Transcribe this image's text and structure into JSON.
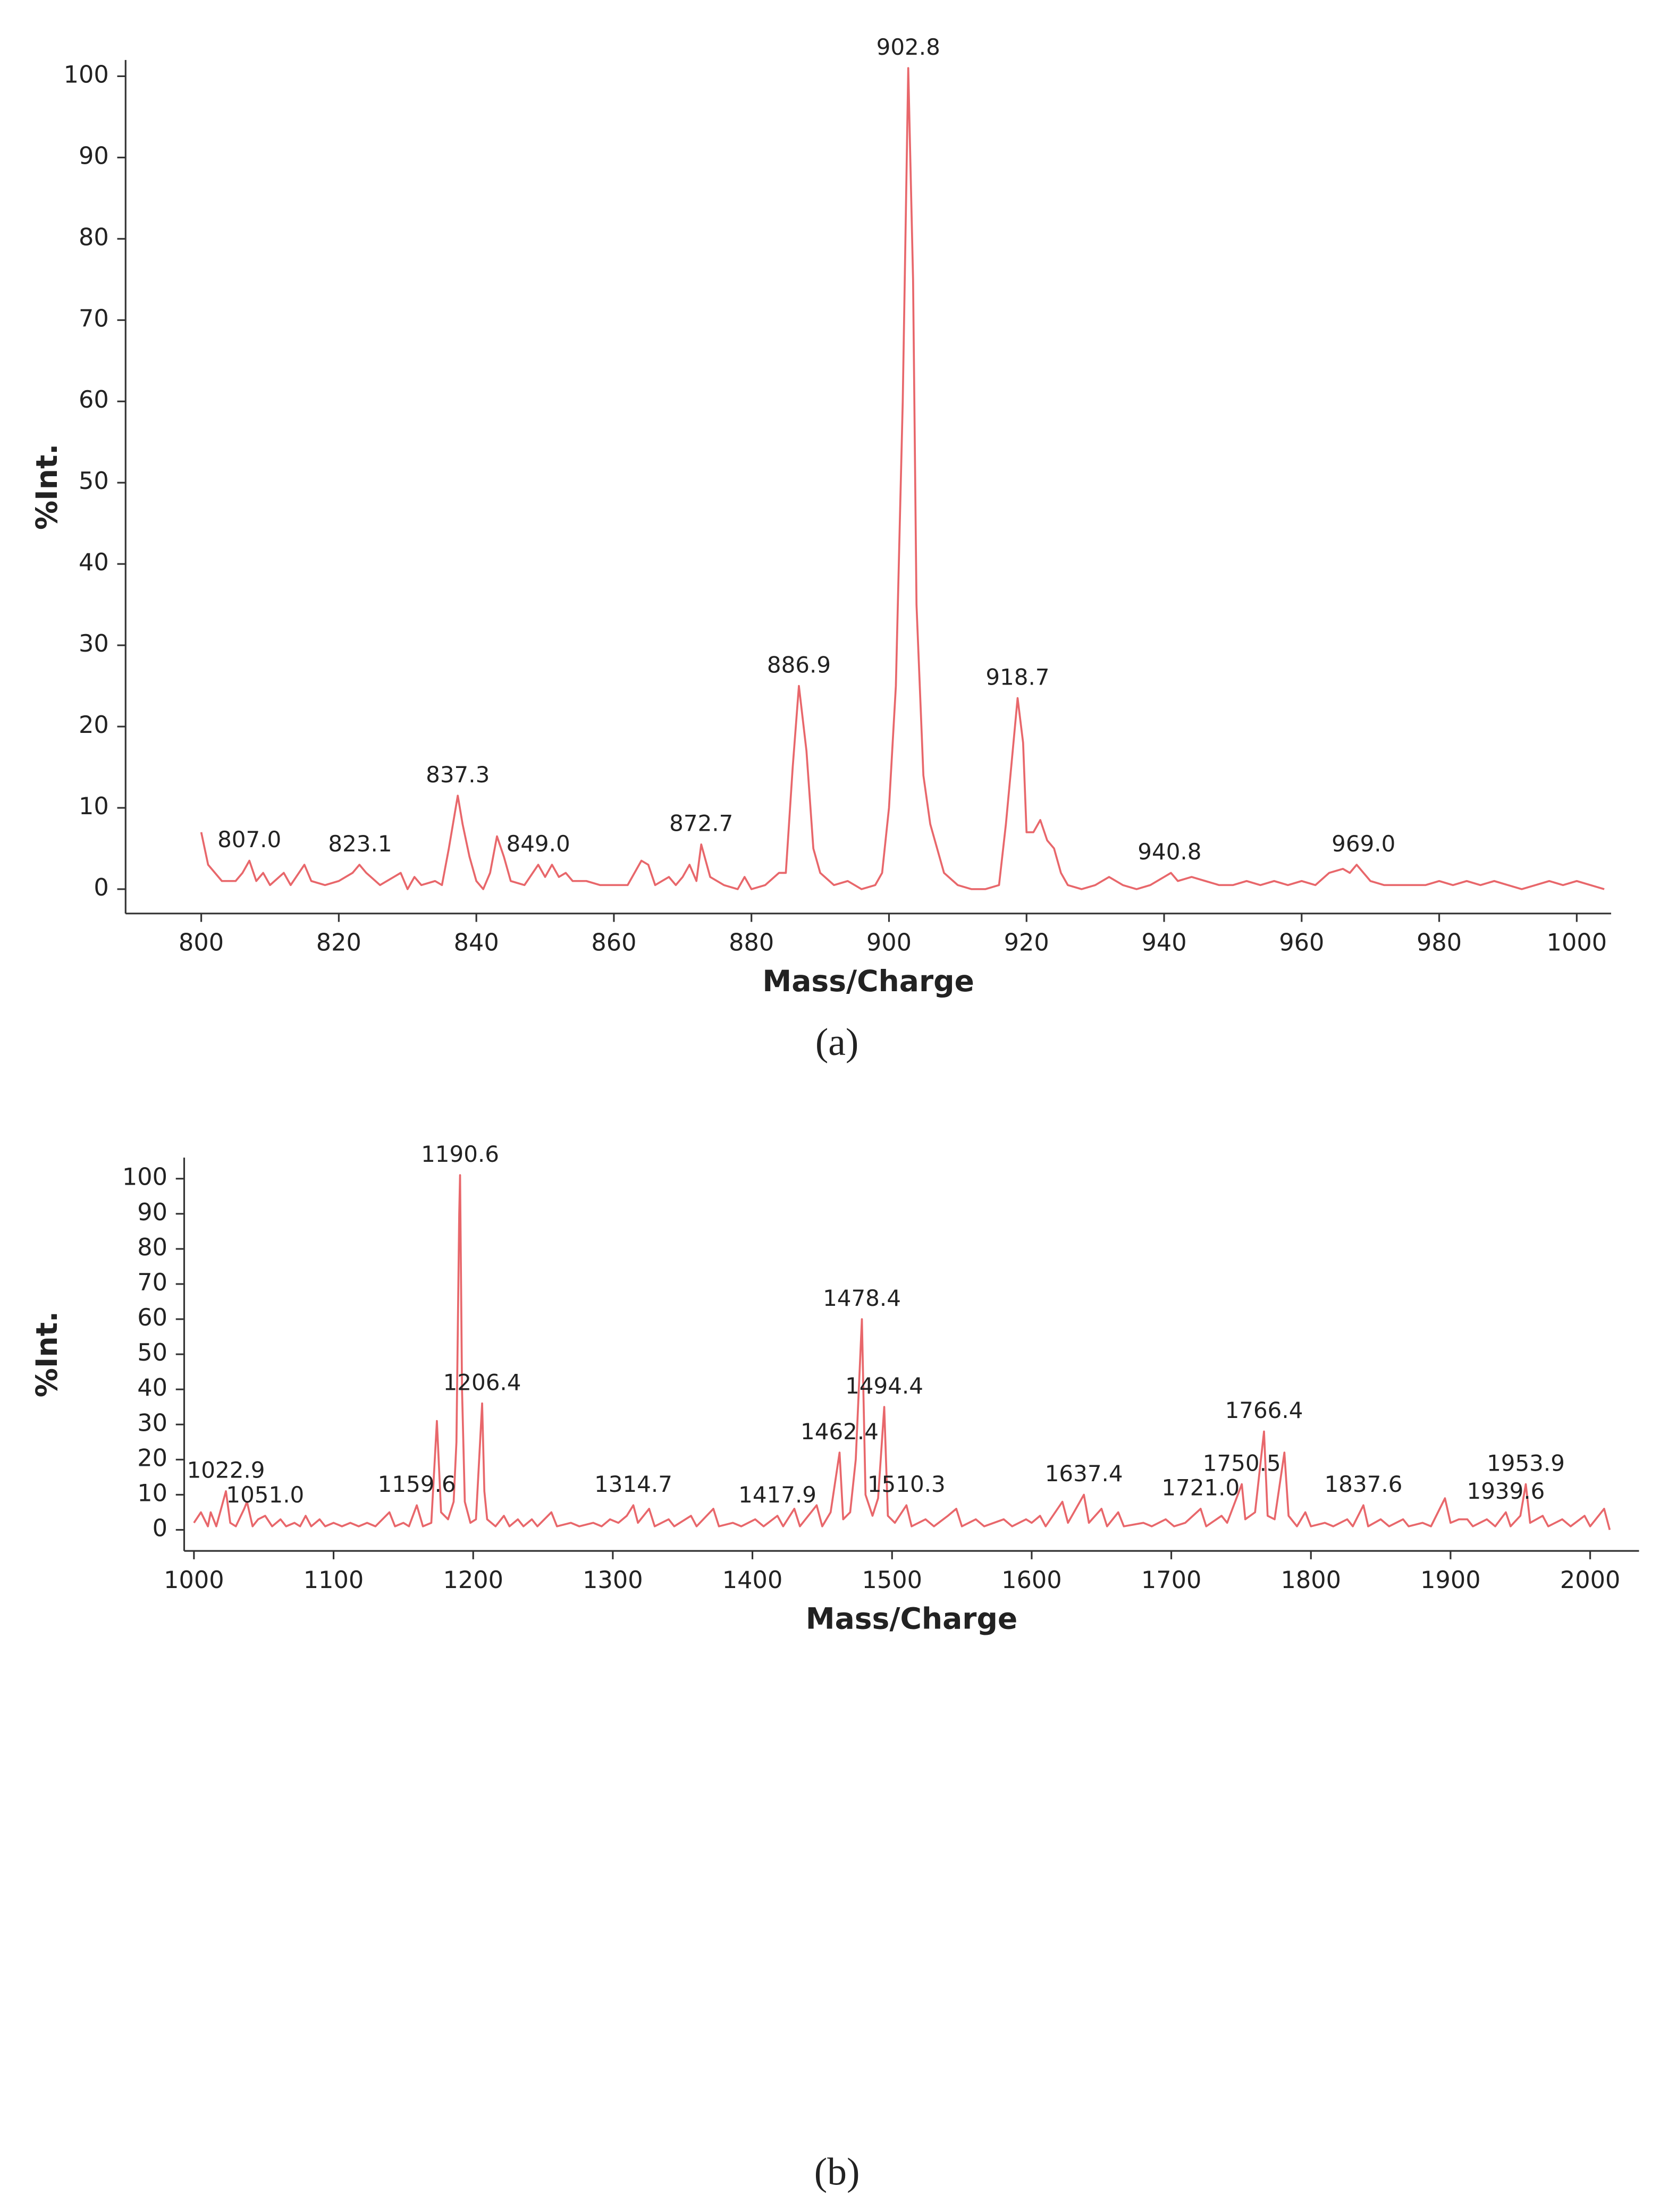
{
  "chart_data": [
    {
      "type": "line",
      "caption": "(a)",
      "xlabel": "Mass/Charge",
      "ylabel": "%Int.",
      "color": "#e8676b",
      "xlim": [
        789,
        1005
      ],
      "ylim": [
        -3,
        102
      ],
      "xticks": [
        800,
        820,
        840,
        860,
        880,
        900,
        920,
        940,
        960,
        980,
        1000
      ],
      "yticks": [
        0,
        10,
        20,
        30,
        40,
        50,
        60,
        70,
        80,
        90,
        100
      ],
      "x": [
        800,
        801,
        803,
        805,
        806,
        807,
        808,
        809,
        810,
        812,
        813,
        815,
        816,
        818,
        820,
        822,
        823,
        824,
        826,
        828,
        829,
        830,
        831,
        832,
        834,
        835,
        836,
        837.3,
        838,
        839,
        840,
        841,
        842,
        843,
        844,
        845,
        847,
        849,
        850,
        851,
        852,
        853,
        854,
        856,
        858,
        860,
        862,
        864,
        865,
        866,
        868,
        869,
        870,
        871,
        872,
        872.7,
        874,
        876,
        878,
        879,
        880,
        882,
        884,
        885,
        886,
        886.9,
        888,
        889,
        890,
        892,
        894,
        896,
        898,
        899,
        900,
        901,
        902,
        902.8,
        903.5,
        904,
        905,
        906,
        907,
        908,
        910,
        912,
        914,
        916,
        917,
        918.7,
        919.5,
        920,
        921,
        922,
        923,
        924,
        925,
        926,
        928,
        930,
        932,
        934,
        936,
        938,
        940,
        941,
        942,
        944,
        946,
        948,
        950,
        952,
        954,
        956,
        958,
        960,
        962,
        964,
        966,
        967,
        968,
        969,
        970,
        972,
        974,
        976,
        978,
        980,
        982,
        984,
        986,
        988,
        990,
        992,
        994,
        996,
        998,
        1000,
        1002,
        1004
      ],
      "series": [
        {
          "values": [
            7,
            3,
            1,
            1,
            2,
            3.5,
            1,
            2,
            0.5,
            2,
            0.5,
            3,
            1,
            0.5,
            1,
            2,
            3,
            2,
            0.5,
            1.5,
            2,
            0,
            1.5,
            0.5,
            1,
            0.5,
            5,
            11.5,
            8,
            4,
            1,
            0,
            2,
            6.5,
            4,
            1,
            0.5,
            3,
            1.5,
            3,
            1.5,
            2,
            1,
            1,
            0.5,
            0.5,
            0.5,
            3.5,
            3,
            0.5,
            1.5,
            0.5,
            1.5,
            3,
            1,
            5.5,
            1.5,
            0.5,
            0,
            1.5,
            0,
            0.5,
            2,
            2,
            15,
            25,
            17,
            5,
            2,
            0.5,
            1,
            0,
            0.5,
            2,
            10,
            25,
            60,
            101,
            75,
            35,
            14,
            8,
            5,
            2,
            0.5,
            0,
            0,
            0.5,
            8,
            23.5,
            18,
            7,
            7,
            8.5,
            6,
            5,
            2,
            0.5,
            0,
            0.5,
            1.5,
            0.5,
            0,
            0.5,
            1.5,
            2,
            1,
            1.5,
            1,
            0.5,
            0.5,
            1,
            0.5,
            1,
            0.5,
            1,
            0.5,
            2,
            2.5,
            2,
            3,
            2,
            1,
            0.5,
            0.5,
            0.5,
            0.5,
            1,
            0.5,
            1,
            0.5,
            1,
            0.5,
            0,
            0.5,
            1,
            0.5,
            1,
            0.5,
            0
          ]
        }
      ],
      "annotations": [
        {
          "label": "807.0",
          "x": 807.0,
          "y": 3.5
        },
        {
          "label": "823.1",
          "x": 823.1,
          "y": 3
        },
        {
          "label": "837.3",
          "x": 837.3,
          "y": 11.5
        },
        {
          "label": "849.0",
          "x": 849.0,
          "y": 3
        },
        {
          "label": "872.7",
          "x": 872.7,
          "y": 5.5
        },
        {
          "label": "886.9",
          "x": 886.9,
          "y": 25
        },
        {
          "label": "902.8",
          "x": 902.8,
          "y": 101
        },
        {
          "label": "918.7",
          "x": 918.7,
          "y": 23.5
        },
        {
          "label": "940.8",
          "x": 940.8,
          "y": 2
        },
        {
          "label": "969.0",
          "x": 969.0,
          "y": 3
        }
      ]
    },
    {
      "type": "line",
      "caption": "(b)",
      "xlabel": "Mass/Charge",
      "ylabel": "%Int.",
      "color": "#e8676b",
      "xlim": [
        993,
        2035
      ],
      "ylim": [
        -6,
        106
      ],
      "xticks": [
        1000,
        1100,
        1200,
        1300,
        1400,
        1500,
        1600,
        1700,
        1800,
        1900,
        2000
      ],
      "yticks": [
        0,
        10,
        20,
        30,
        40,
        50,
        60,
        70,
        80,
        90,
        100
      ],
      "x": [
        1000,
        1005,
        1010,
        1012,
        1016,
        1022.9,
        1026,
        1030,
        1036,
        1038,
        1042,
        1046,
        1051,
        1056,
        1062,
        1066,
        1072,
        1076,
        1080,
        1084,
        1090,
        1094,
        1100,
        1106,
        1112,
        1118,
        1124,
        1130,
        1140,
        1144,
        1150,
        1154,
        1159.6,
        1164,
        1170,
        1174,
        1177,
        1182,
        1186,
        1188,
        1190,
        1190.6,
        1192,
        1194,
        1198,
        1202,
        1206.4,
        1208,
        1210,
        1216,
        1222,
        1226,
        1232,
        1236,
        1242,
        1246,
        1256,
        1260,
        1270,
        1276,
        1286,
        1292,
        1298,
        1304,
        1310,
        1314.7,
        1318,
        1326,
        1330,
        1340,
        1344,
        1356,
        1360,
        1372,
        1376,
        1386,
        1392,
        1402,
        1408,
        1417.9,
        1422,
        1430,
        1434,
        1446,
        1450,
        1456,
        1462.4,
        1465,
        1470,
        1474,
        1478.4,
        1481,
        1486,
        1490,
        1494.4,
        1497,
        1502,
        1510.3,
        1514,
        1524,
        1530,
        1540,
        1546,
        1550,
        1560,
        1566,
        1580,
        1586,
        1596,
        1600,
        1606,
        1610,
        1622,
        1626,
        1637.4,
        1641,
        1650,
        1654,
        1662,
        1666,
        1680,
        1686,
        1696,
        1702,
        1710,
        1721,
        1725,
        1736,
        1740,
        1750.5,
        1753,
        1760,
        1766.4,
        1769,
        1774,
        1781,
        1784,
        1790,
        1796,
        1800,
        1810,
        1816,
        1826,
        1830,
        1837.6,
        1841,
        1850,
        1856,
        1866,
        1870,
        1880,
        1886,
        1896,
        1900,
        1906,
        1912,
        1916,
        1926,
        1932,
        1939.6,
        1943,
        1950,
        1953.9,
        1957,
        1966,
        1970,
        1980,
        1986,
        1996,
        2000,
        2010,
        2014
      ],
      "series": [
        {
          "values": [
            2,
            5,
            1,
            5,
            1,
            11,
            2,
            1,
            6,
            8,
            1,
            3,
            4,
            1,
            3,
            1,
            2,
            1,
            4,
            1,
            3,
            1,
            2,
            1,
            2,
            1,
            2,
            1,
            5,
            1,
            2,
            1,
            7,
            1,
            2,
            31,
            5,
            3,
            8,
            25,
            90,
            101,
            40,
            8,
            2,
            3,
            36,
            11,
            3,
            1,
            4,
            1,
            3,
            1,
            3,
            1,
            5,
            1,
            2,
            1,
            2,
            1,
            3,
            2,
            4,
            7,
            2,
            6,
            1,
            3,
            1,
            4,
            1,
            6,
            1,
            2,
            1,
            3,
            1,
            4,
            1,
            6,
            1,
            7,
            1,
            5,
            22,
            3,
            5,
            20,
            60,
            10,
            4,
            9,
            35,
            4,
            2,
            7,
            1,
            3,
            1,
            4,
            6,
            1,
            3,
            1,
            3,
            1,
            3,
            2,
            4,
            1,
            8,
            2,
            10,
            2,
            6,
            1,
            5,
            1,
            2,
            1,
            3,
            1,
            2,
            6,
            1,
            4,
            2,
            13,
            3,
            5,
            28,
            4,
            3,
            22,
            4,
            1,
            5,
            1,
            2,
            1,
            3,
            1,
            7,
            1,
            3,
            1,
            3,
            1,
            2,
            1,
            9,
            2,
            3,
            3,
            1,
            3,
            1,
            5,
            1,
            4,
            13,
            2,
            4,
            1,
            3,
            1,
            4,
            1,
            6,
            0
          ]
        }
      ],
      "annotations": [
        {
          "label": "1022.9",
          "x": 1022.9,
          "y": 11
        },
        {
          "label": "1051.0",
          "x": 1051.0,
          "y": 4
        },
        {
          "label": "1159.6",
          "x": 1159.6,
          "y": 7
        },
        {
          "label": "1190.6",
          "x": 1190.6,
          "y": 101
        },
        {
          "label": "1206.4",
          "x": 1206.4,
          "y": 36
        },
        {
          "label": "1314.7",
          "x": 1314.7,
          "y": 7
        },
        {
          "label": "1417.9",
          "x": 1417.9,
          "y": 4
        },
        {
          "label": "1462.4",
          "x": 1462.4,
          "y": 22
        },
        {
          "label": "1478.4",
          "x": 1478.4,
          "y": 60
        },
        {
          "label": "1494.4",
          "x": 1494.4,
          "y": 35
        },
        {
          "label": "1510.3",
          "x": 1510.3,
          "y": 7
        },
        {
          "label": "1637.4",
          "x": 1637.4,
          "y": 10
        },
        {
          "label": "1721.0",
          "x": 1721.0,
          "y": 6
        },
        {
          "label": "1750.5",
          "x": 1750.5,
          "y": 13
        },
        {
          "label": "1766.4",
          "x": 1766.4,
          "y": 28
        },
        {
          "label": "1837.6",
          "x": 1837.6,
          "y": 7
        },
        {
          "label": "1939.6",
          "x": 1939.6,
          "y": 5
        },
        {
          "label": "1953.9",
          "x": 1953.9,
          "y": 13
        }
      ]
    }
  ]
}
